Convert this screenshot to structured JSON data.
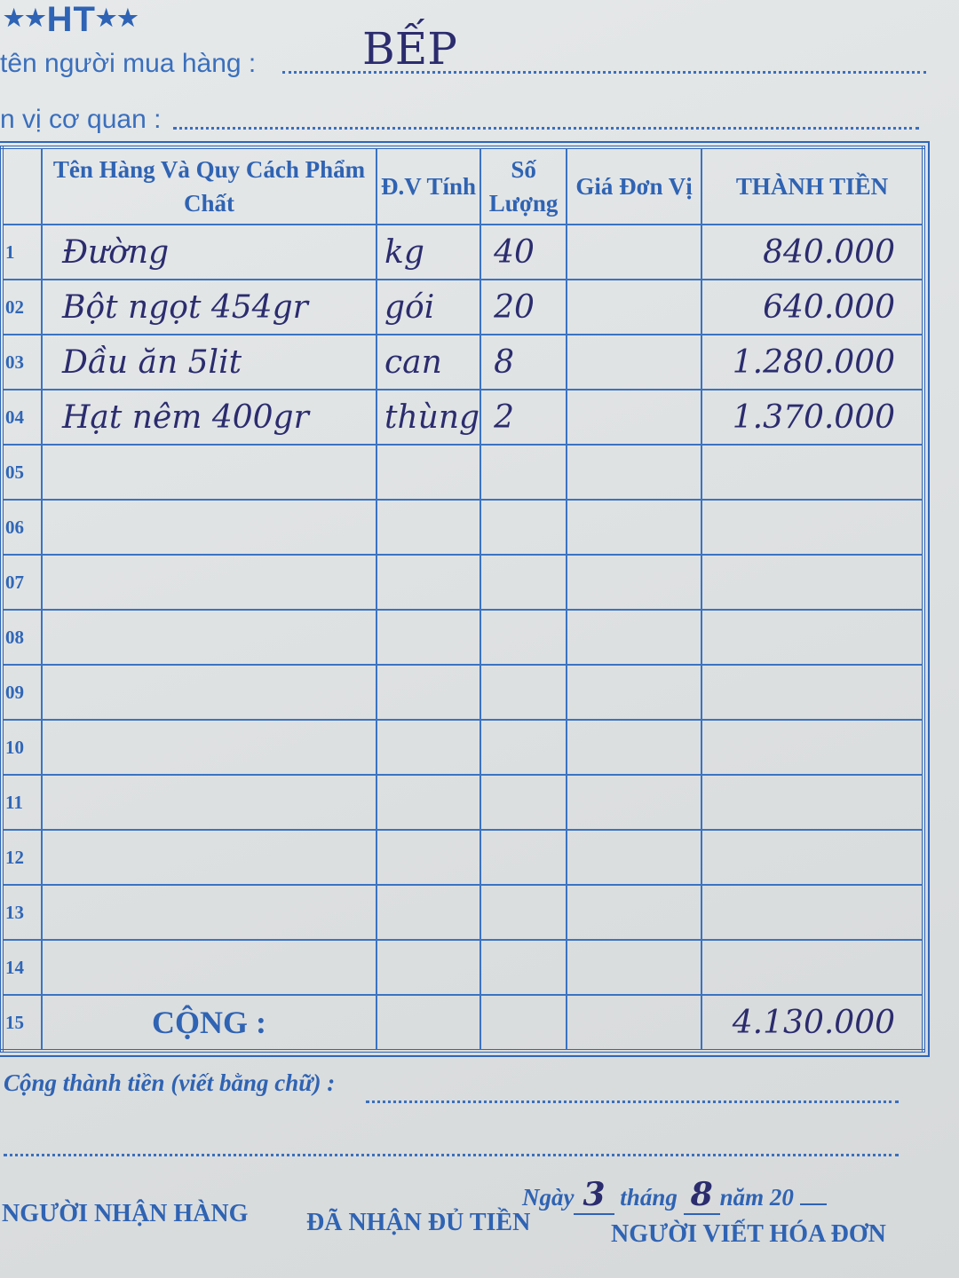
{
  "header": {
    "brand": "HT",
    "buyer_label": "tên người mua hàng :",
    "buyer_value": "BẾP",
    "org_label": "n vị cơ quan :"
  },
  "table": {
    "columns": [
      "",
      "Tên Hàng Và Quy Cách Phẩm Chất",
      "Đ.V Tính",
      "Số Lượng",
      "Giá Đơn Vị",
      "THÀNH TIỀN"
    ],
    "rows": [
      {
        "no": "1",
        "name": "Đường",
        "unit": "kg",
        "qty": "40",
        "price": "",
        "amount": "840.000"
      },
      {
        "no": "02",
        "name": "Bột ngọt 454gr",
        "unit": "gói",
        "qty": "20",
        "price": "",
        "amount": "640.000"
      },
      {
        "no": "03",
        "name": "Dầu ăn 5lit",
        "unit": "can",
        "qty": "8",
        "price": "",
        "amount": "1.280.000"
      },
      {
        "no": "04",
        "name": "Hạt nêm 400gr",
        "unit": "thùng",
        "qty": "2",
        "price": "",
        "amount": "1.370.000"
      },
      {
        "no": "05",
        "name": "",
        "unit": "",
        "qty": "",
        "price": "",
        "amount": ""
      },
      {
        "no": "06",
        "name": "",
        "unit": "",
        "qty": "",
        "price": "",
        "amount": ""
      },
      {
        "no": "07",
        "name": "",
        "unit": "",
        "qty": "",
        "price": "",
        "amount": ""
      },
      {
        "no": "08",
        "name": "",
        "unit": "",
        "qty": "",
        "price": "",
        "amount": ""
      },
      {
        "no": "09",
        "name": "",
        "unit": "",
        "qty": "",
        "price": "",
        "amount": ""
      },
      {
        "no": "10",
        "name": "",
        "unit": "",
        "qty": "",
        "price": "",
        "amount": ""
      },
      {
        "no": "11",
        "name": "",
        "unit": "",
        "qty": "",
        "price": "",
        "amount": ""
      },
      {
        "no": "12",
        "name": "",
        "unit": "",
        "qty": "",
        "price": "",
        "amount": ""
      },
      {
        "no": "13",
        "name": "",
        "unit": "",
        "qty": "",
        "price": "",
        "amount": ""
      },
      {
        "no": "14",
        "name": "",
        "unit": "",
        "qty": "",
        "price": "",
        "amount": ""
      }
    ],
    "total": {
      "no": "15",
      "label": "CỘNG :",
      "amount": "4.130.000"
    }
  },
  "footer": {
    "words_label": "Cộng thành tiền (viết bằng chữ) :",
    "date_day_label": "Ngày",
    "date_day": "3",
    "date_month_label": "tháng",
    "date_month": "8",
    "date_year_label": "năm 20",
    "receiver": "NGƯỜI NHẬN HÀNG",
    "paid": "ĐÃ NHẬN ĐỦ TIỀN",
    "writer": "NGƯỜI VIẾT HÓA ĐƠN"
  }
}
